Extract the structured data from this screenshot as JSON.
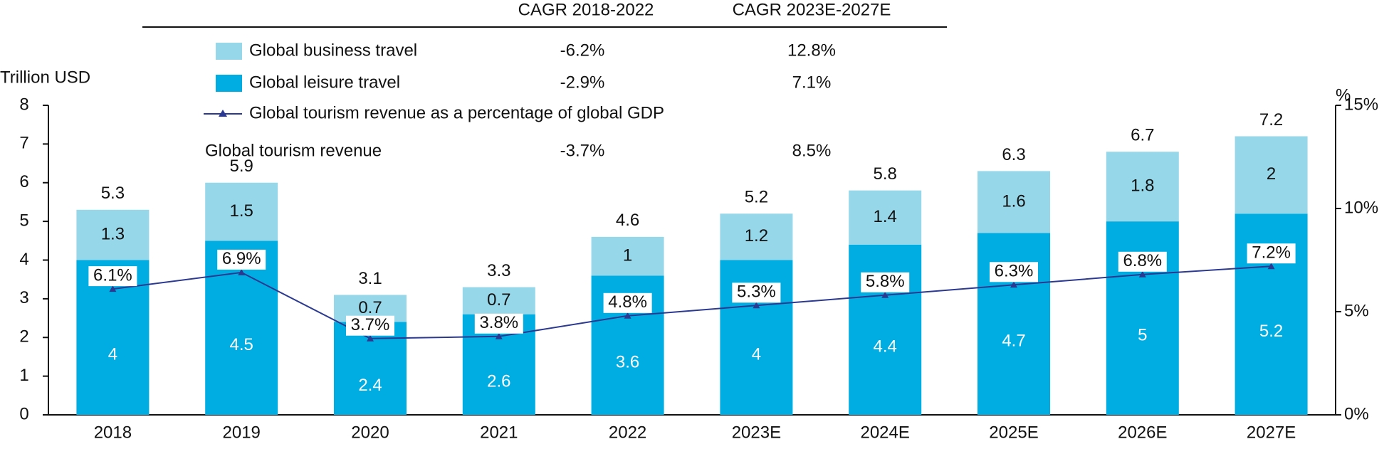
{
  "chart_data": {
    "type": "bar",
    "y_axis_label": "Trillion USD",
    "y2_axis_label": "%",
    "categories": [
      "2018",
      "2019",
      "2020",
      "2021",
      "2022",
      "2023E",
      "2024E",
      "2025E",
      "2026E",
      "2027E"
    ],
    "cagr_headers": [
      "CAGR 2018-2022",
      "CAGR 2023E-2027E"
    ],
    "series": [
      {
        "name": "Global leisure travel",
        "color": "#00ade3",
        "label_color": "#ffffff",
        "cagr": [
          "-2.9%",
          "7.1%"
        ],
        "values": [
          4.0,
          4.5,
          2.4,
          2.6,
          3.6,
          4.0,
          4.4,
          4.7,
          5.0,
          5.2
        ]
      },
      {
        "name": "Global business travel",
        "color": "#96d7ea",
        "label_color": "#111111",
        "cagr": [
          "-6.2%",
          "12.8%"
        ],
        "values": [
          1.3,
          1.5,
          0.7,
          0.7,
          1.0,
          1.2,
          1.4,
          1.6,
          1.8,
          2.0
        ]
      },
      {
        "name": "Global tourism revenue as a percentage of global GDP",
        "type": "line",
        "axis": "y2",
        "color": "#2b3990",
        "values": [
          6.1,
          6.9,
          3.7,
          3.8,
          4.8,
          5.3,
          5.8,
          6.3,
          6.8,
          7.2
        ],
        "value_labels": [
          "6.1%",
          "6.9%",
          "3.7%",
          "3.8%",
          "4.8%",
          "5.3%",
          "5.8%",
          "6.3%",
          "6.8%",
          "7.2%"
        ]
      }
    ],
    "totals": {
      "name": "Global tourism revenue",
      "cagr": [
        "-3.7%",
        "8.5%"
      ],
      "values": [
        5.3,
        5.9,
        3.1,
        3.3,
        4.6,
        5.2,
        5.8,
        6.3,
        6.7,
        7.2
      ]
    },
    "ylim": [
      0,
      8
    ],
    "yticks": [
      0,
      1,
      2,
      3,
      4,
      5,
      6,
      7,
      8
    ],
    "y2lim": [
      0,
      15
    ],
    "y2ticks": [
      {
        "value": 0,
        "label": "0%"
      },
      {
        "value": 5,
        "label": "5%"
      },
      {
        "value": 10,
        "label": "10%"
      },
      {
        "value": 15,
        "label": "15%"
      }
    ]
  }
}
